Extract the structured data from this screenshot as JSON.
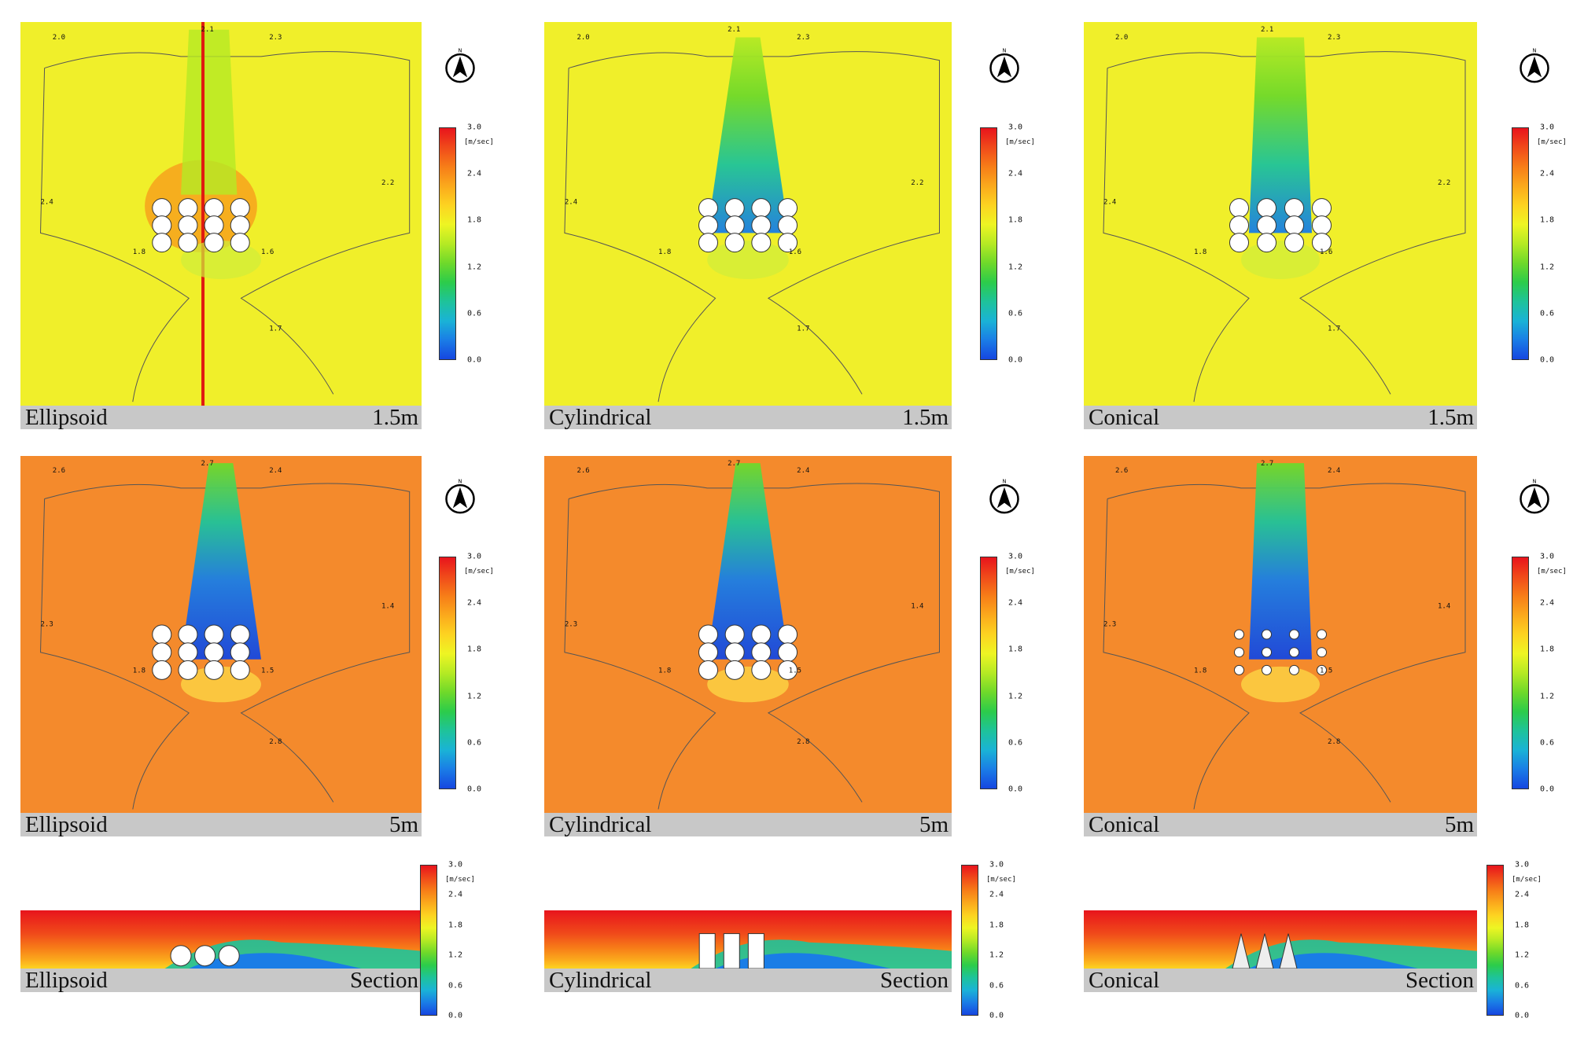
{
  "figure": {
    "rows": [
      {
        "level": "1.5m",
        "panels": [
          {
            "shape": "Ellipsoid",
            "height_label": "1.5m"
          },
          {
            "shape": "Cylindrical",
            "height_label": "1.5m"
          },
          {
            "shape": "Conical",
            "height_label": "1.5m"
          }
        ]
      },
      {
        "level": "5m",
        "panels": [
          {
            "shape": "Ellipsoid",
            "height_label": "5m"
          },
          {
            "shape": "Cylindrical",
            "height_label": "5m"
          },
          {
            "shape": "Conical",
            "height_label": "5m"
          }
        ]
      },
      {
        "level": "Section",
        "panels": [
          {
            "shape": "Ellipsoid",
            "height_label": "Section"
          },
          {
            "shape": "Cylindrical",
            "height_label": "Section"
          },
          {
            "shape": "Conical",
            "height_label": "Section"
          }
        ]
      }
    ],
    "north_label": "N",
    "legend": {
      "unit": "[m/sec]",
      "ticks": [
        "3.0",
        "2.4",
        "1.8",
        "1.2",
        "0.6",
        "0.0"
      ],
      "colors": [
        "#e8141c",
        "#f04a1a",
        "#f77d18",
        "#fba91c",
        "#fdd321",
        "#eef523",
        "#b5ea24",
        "#6fd92a",
        "#2ccc4a",
        "#1ec39a",
        "#1ab3d6",
        "#1a7de6",
        "#1646e0"
      ]
    },
    "background_colors": {
      "row_1_5m": "#f0ef2a",
      "row_5m": "#f48a2c",
      "section_top": "#f01e14"
    },
    "contour_labels": {
      "row_1_5m": [
        "2.0",
        "2.1",
        "2.3",
        "2.4",
        "1.8",
        "1.6",
        "2.2",
        "1.7"
      ],
      "row_5m": [
        "2.6",
        "2.7",
        "2.4",
        "2.3",
        "1.8",
        "1.5",
        "1.4",
        "2.8"
      ]
    }
  }
}
